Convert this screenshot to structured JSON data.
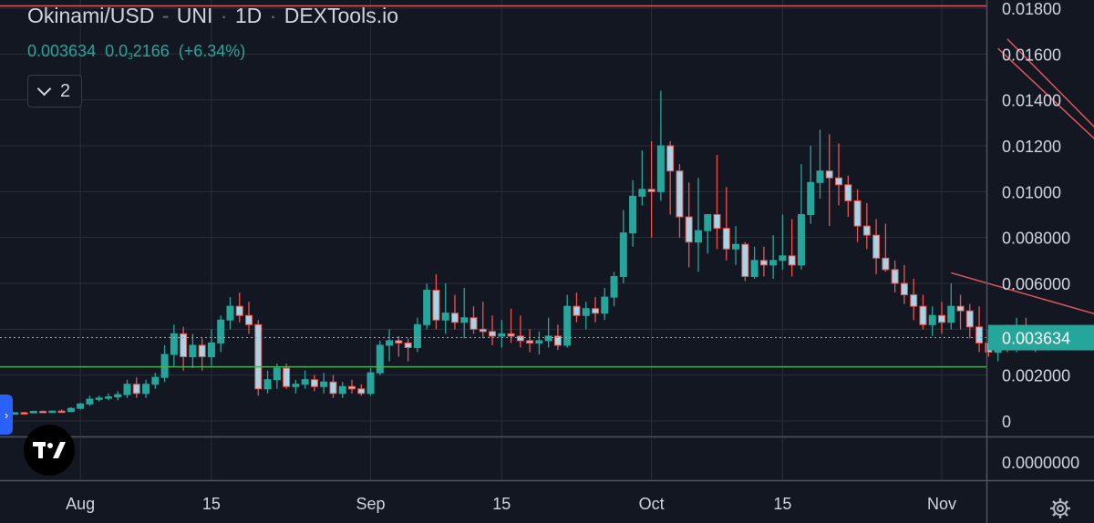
{
  "header": {
    "pair": "Okinami/USD",
    "exchange": "UNI",
    "interval": "1D",
    "source": "DEXTools.io",
    "ohlc_value": "0.003634",
    "change_prefix": "0.0",
    "change_zeros": "3",
    "change_digits": "2166",
    "change_percent": "(+6.34%)",
    "collapse_count": "2"
  },
  "colors": {
    "background": "#131722",
    "up": "#26a69a",
    "down": "#ef5350",
    "up_body": "#26a69a",
    "down_body": "#a5d6e8",
    "trendline": "#e0575a",
    "support": "#4caf50",
    "grid": "#2a2e39",
    "price_label": "#26a69a"
  },
  "chart_data": {
    "type": "candlestick",
    "y_axis": {
      "min": 0,
      "max": 0.0182,
      "tick_values": [
        0,
        0.002,
        0.004,
        0.006,
        0.008,
        0.01,
        0.012,
        0.014,
        0.016,
        0.018
      ],
      "tick_labels": [
        "0",
        "0.002000",
        "",
        "0.006000",
        "0.008000",
        "0.01000",
        "0.01200",
        "0.01400",
        "0.01600",
        "0.01800"
      ],
      "lower_pane_label": "0.0000000"
    },
    "x_axis": {
      "ticks": [
        {
          "label": "Aug",
          "index": 8
        },
        {
          "label": "15",
          "index": 22
        },
        {
          "label": "Sep",
          "index": 39
        },
        {
          "label": "15",
          "index": 53
        },
        {
          "label": "Oct",
          "index": 69
        },
        {
          "label": "15",
          "index": 83
        },
        {
          "label": "Nov",
          "index": 100
        }
      ]
    },
    "last_price": 0.003634,
    "last_price_label": "0.003634",
    "candles": [
      [
        0.00034,
        0.00036,
        0.0003,
        0.00034
      ],
      [
        0.00034,
        0.00038,
        0.00031,
        0.00036
      ],
      [
        0.00036,
        0.0004,
        0.00033,
        0.00035
      ],
      [
        0.00035,
        0.00044,
        0.00033,
        0.00042
      ],
      [
        0.00042,
        0.00046,
        0.00036,
        0.00038
      ],
      [
        0.00038,
        0.00045,
        0.00035,
        0.00043
      ],
      [
        0.00043,
        0.0005,
        0.00038,
        0.00041
      ],
      [
        0.00041,
        0.0006,
        0.00038,
        0.00055
      ],
      [
        0.00055,
        0.0008,
        0.0005,
        0.00074
      ],
      [
        0.00074,
        0.0011,
        0.00065,
        0.00095
      ],
      [
        0.00095,
        0.0011,
        0.00085,
        0.001
      ],
      [
        0.001,
        0.0012,
        0.0009,
        0.00105
      ],
      [
        0.00105,
        0.0013,
        0.0009,
        0.00115
      ],
      [
        0.00115,
        0.0018,
        0.001,
        0.0016
      ],
      [
        0.0016,
        0.0019,
        0.001,
        0.0012
      ],
      [
        0.0012,
        0.0018,
        0.001,
        0.0016
      ],
      [
        0.0016,
        0.0021,
        0.0014,
        0.0019
      ],
      [
        0.0019,
        0.0033,
        0.0017,
        0.0029
      ],
      [
        0.0029,
        0.0042,
        0.0024,
        0.0038
      ],
      [
        0.0038,
        0.0041,
        0.0022,
        0.0028
      ],
      [
        0.0028,
        0.0038,
        0.0023,
        0.0033
      ],
      [
        0.0033,
        0.0036,
        0.0022,
        0.0028
      ],
      [
        0.0028,
        0.004,
        0.0024,
        0.0034
      ],
      [
        0.0034,
        0.0046,
        0.003,
        0.0044
      ],
      [
        0.0044,
        0.0054,
        0.004,
        0.005
      ],
      [
        0.005,
        0.0056,
        0.0043,
        0.0046
      ],
      [
        0.0046,
        0.0052,
        0.0038,
        0.0042
      ],
      [
        0.0042,
        0.0044,
        0.0011,
        0.0014
      ],
      [
        0.0014,
        0.0022,
        0.0012,
        0.0018
      ],
      [
        0.0018,
        0.0025,
        0.0014,
        0.0023
      ],
      [
        0.0023,
        0.0025,
        0.0014,
        0.0015
      ],
      [
        0.0015,
        0.0018,
        0.0012,
        0.0016
      ],
      [
        0.0016,
        0.0022,
        0.0014,
        0.0018
      ],
      [
        0.0018,
        0.002,
        0.0013,
        0.0015
      ],
      [
        0.0015,
        0.0021,
        0.0012,
        0.0017
      ],
      [
        0.0017,
        0.002,
        0.001,
        0.0012
      ],
      [
        0.0012,
        0.0017,
        0.001,
        0.0015
      ],
      [
        0.0015,
        0.0018,
        0.0012,
        0.0014
      ],
      [
        0.0014,
        0.0016,
        0.0011,
        0.0012
      ],
      [
        0.0012,
        0.0023,
        0.0011,
        0.0021
      ],
      [
        0.0021,
        0.0035,
        0.002,
        0.0033
      ],
      [
        0.0033,
        0.004,
        0.0026,
        0.0035
      ],
      [
        0.0035,
        0.0037,
        0.0028,
        0.0034
      ],
      [
        0.0034,
        0.0036,
        0.0026,
        0.0032
      ],
      [
        0.0032,
        0.0045,
        0.003,
        0.0042
      ],
      [
        0.0042,
        0.006,
        0.004,
        0.0057
      ],
      [
        0.0057,
        0.0064,
        0.004,
        0.0044
      ],
      [
        0.0044,
        0.006,
        0.0038,
        0.0047
      ],
      [
        0.0047,
        0.0055,
        0.004,
        0.0043
      ],
      [
        0.0043,
        0.0058,
        0.0036,
        0.0045
      ],
      [
        0.0045,
        0.005,
        0.0038,
        0.004
      ],
      [
        0.004,
        0.0052,
        0.0036,
        0.0039
      ],
      [
        0.0039,
        0.0046,
        0.0033,
        0.0037
      ],
      [
        0.0037,
        0.0044,
        0.0032,
        0.0038
      ],
      [
        0.0038,
        0.0049,
        0.0034,
        0.0037
      ],
      [
        0.0037,
        0.0046,
        0.0032,
        0.0035
      ],
      [
        0.0035,
        0.004,
        0.003,
        0.0034
      ],
      [
        0.0034,
        0.0039,
        0.0029,
        0.0035
      ],
      [
        0.0035,
        0.0045,
        0.0032,
        0.0037
      ],
      [
        0.0037,
        0.0042,
        0.0031,
        0.0033
      ],
      [
        0.0033,
        0.0055,
        0.0032,
        0.005
      ],
      [
        0.005,
        0.0056,
        0.0043,
        0.0046
      ],
      [
        0.0046,
        0.0052,
        0.004,
        0.0049
      ],
      [
        0.0049,
        0.0054,
        0.0043,
        0.0047
      ],
      [
        0.0047,
        0.0058,
        0.0044,
        0.0054
      ],
      [
        0.0054,
        0.0065,
        0.005,
        0.0063
      ],
      [
        0.0063,
        0.0092,
        0.006,
        0.0082
      ],
      [
        0.0082,
        0.0105,
        0.0076,
        0.0098
      ],
      [
        0.0098,
        0.0118,
        0.0094,
        0.0101
      ],
      [
        0.0101,
        0.0122,
        0.008,
        0.01
      ],
      [
        0.01,
        0.0144,
        0.0096,
        0.012
      ],
      [
        0.012,
        0.0122,
        0.009,
        0.0109
      ],
      [
        0.0109,
        0.0112,
        0.008,
        0.0089
      ],
      [
        0.0089,
        0.0104,
        0.0067,
        0.0078
      ],
      [
        0.0078,
        0.0106,
        0.0065,
        0.0083
      ],
      [
        0.0083,
        0.009,
        0.0073,
        0.009
      ],
      [
        0.009,
        0.0116,
        0.0075,
        0.0084
      ],
      [
        0.0084,
        0.0102,
        0.007,
        0.0075
      ],
      [
        0.0075,
        0.0085,
        0.0068,
        0.0077
      ],
      [
        0.0077,
        0.0078,
        0.0061,
        0.0063
      ],
      [
        0.0063,
        0.0076,
        0.0062,
        0.007
      ],
      [
        0.007,
        0.0076,
        0.0063,
        0.0068
      ],
      [
        0.0068,
        0.0081,
        0.0062,
        0.007
      ],
      [
        0.007,
        0.009,
        0.0066,
        0.0072
      ],
      [
        0.0072,
        0.0088,
        0.0063,
        0.0068
      ],
      [
        0.0068,
        0.0112,
        0.0066,
        0.009
      ],
      [
        0.009,
        0.012,
        0.0086,
        0.0104
      ],
      [
        0.0104,
        0.0127,
        0.0097,
        0.0109
      ],
      [
        0.0109,
        0.0125,
        0.0085,
        0.0106
      ],
      [
        0.0106,
        0.0121,
        0.0094,
        0.0103
      ],
      [
        0.0103,
        0.0107,
        0.0089,
        0.0096
      ],
      [
        0.0096,
        0.0101,
        0.0078,
        0.0085
      ],
      [
        0.0085,
        0.0095,
        0.0075,
        0.0081
      ],
      [
        0.0081,
        0.0088,
        0.0064,
        0.0071
      ],
      [
        0.0071,
        0.0086,
        0.0065,
        0.0066
      ],
      [
        0.0066,
        0.007,
        0.0056,
        0.006
      ],
      [
        0.006,
        0.0068,
        0.0051,
        0.0055
      ],
      [
        0.0055,
        0.0062,
        0.0044,
        0.005
      ],
      [
        0.005,
        0.0055,
        0.004,
        0.0042
      ],
      [
        0.0042,
        0.005,
        0.0037,
        0.0046
      ],
      [
        0.0046,
        0.0052,
        0.0038,
        0.0043
      ],
      [
        0.0043,
        0.006,
        0.004,
        0.005
      ],
      [
        0.005,
        0.0055,
        0.004,
        0.0048
      ],
      [
        0.0048,
        0.0051,
        0.0036,
        0.0041
      ],
      [
        0.0041,
        0.005,
        0.003,
        0.0034
      ],
      [
        0.0034,
        0.004,
        0.0028,
        0.003
      ],
      [
        0.003,
        0.0038,
        0.0026,
        0.0036
      ],
      [
        0.0036,
        0.0042,
        0.003,
        0.0034
      ],
      [
        0.0034,
        0.0045,
        0.003,
        0.0036
      ],
      [
        0.0036,
        0.0045,
        0.0033,
        0.0035
      ],
      [
        0.0035,
        0.004,
        0.003,
        0.0034
      ],
      [
        0.0034,
        0.004,
        0.0033,
        0.0036
      ]
    ],
    "annotations": {
      "support_level": 0.00236,
      "horizontal_top": 0.0181,
      "falling_wedge_upper": [
        [
          107,
          0.01666
        ],
        [
          144,
          0.00138
        ]
      ],
      "falling_wedge_lower": [
        [
          101,
          0.00646
        ],
        [
          146,
          0.00121
        ]
      ],
      "falling_wedge_top_line": [
        [
          106,
          0.01625
        ],
        [
          138,
          0.004
        ]
      ]
    }
  }
}
